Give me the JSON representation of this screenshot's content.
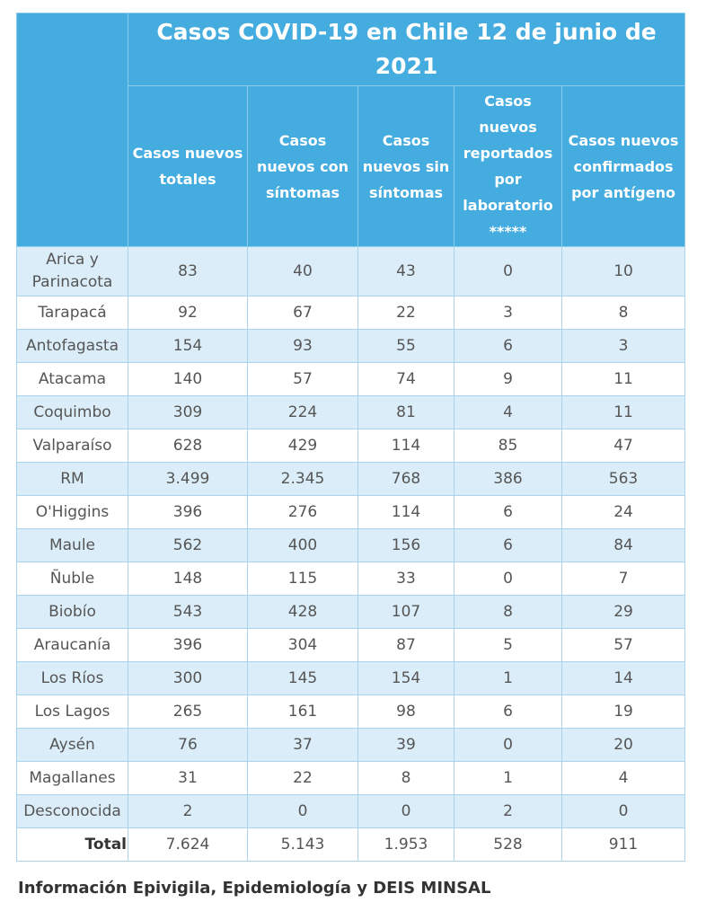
{
  "table": {
    "title": "Casos COVID-19 en Chile 12 de junio de 2021",
    "headers": [
      "Casos nuevos totales",
      "Casos nuevos con síntomas",
      "Casos nuevos sin síntomas",
      "Casos nuevos reportados por laboratorio *****",
      "Casos nuevos confirmados por antígeno"
    ],
    "rows": [
      [
        "Arica y Parinacota",
        "83",
        "40",
        "43",
        "0",
        "10"
      ],
      [
        "Tarapacá",
        "92",
        "67",
        "22",
        "3",
        "8"
      ],
      [
        "Antofagasta",
        "154",
        "93",
        "55",
        "6",
        "3"
      ],
      [
        "Atacama",
        "140",
        "57",
        "74",
        "9",
        "11"
      ],
      [
        "Coquimbo",
        "309",
        "224",
        "81",
        "4",
        "11"
      ],
      [
        "Valparaíso",
        "628",
        "429",
        "114",
        "85",
        "47"
      ],
      [
        "RM",
        "3.499",
        "2.345",
        "768",
        "386",
        "563"
      ],
      [
        "O'Higgins",
        "396",
        "276",
        "114",
        "6",
        "24"
      ],
      [
        "Maule",
        "562",
        "400",
        "156",
        "6",
        "84"
      ],
      [
        "Ñuble",
        "148",
        "115",
        "33",
        "0",
        "7"
      ],
      [
        "Biobío",
        "543",
        "428",
        "107",
        "8",
        "29"
      ],
      [
        "Araucanía",
        "396",
        "304",
        "87",
        "5",
        "57"
      ],
      [
        "Los Ríos",
        "300",
        "145",
        "154",
        "1",
        "14"
      ],
      [
        "Los Lagos",
        "265",
        "161",
        "98",
        "6",
        "19"
      ],
      [
        "Aysén",
        "76",
        "37",
        "39",
        "0",
        "20"
      ],
      [
        "Magallanes",
        "31",
        "22",
        "8",
        "1",
        "4"
      ],
      [
        "Desconocida",
        "2",
        "0",
        "0",
        "2",
        "0"
      ]
    ],
    "total": [
      "Total",
      "7.624",
      "5.143",
      "1.953",
      "528",
      "911"
    ]
  },
  "footer": {
    "source": "Información Epivigila, Epidemiología y DEIS MINSAL"
  }
}
